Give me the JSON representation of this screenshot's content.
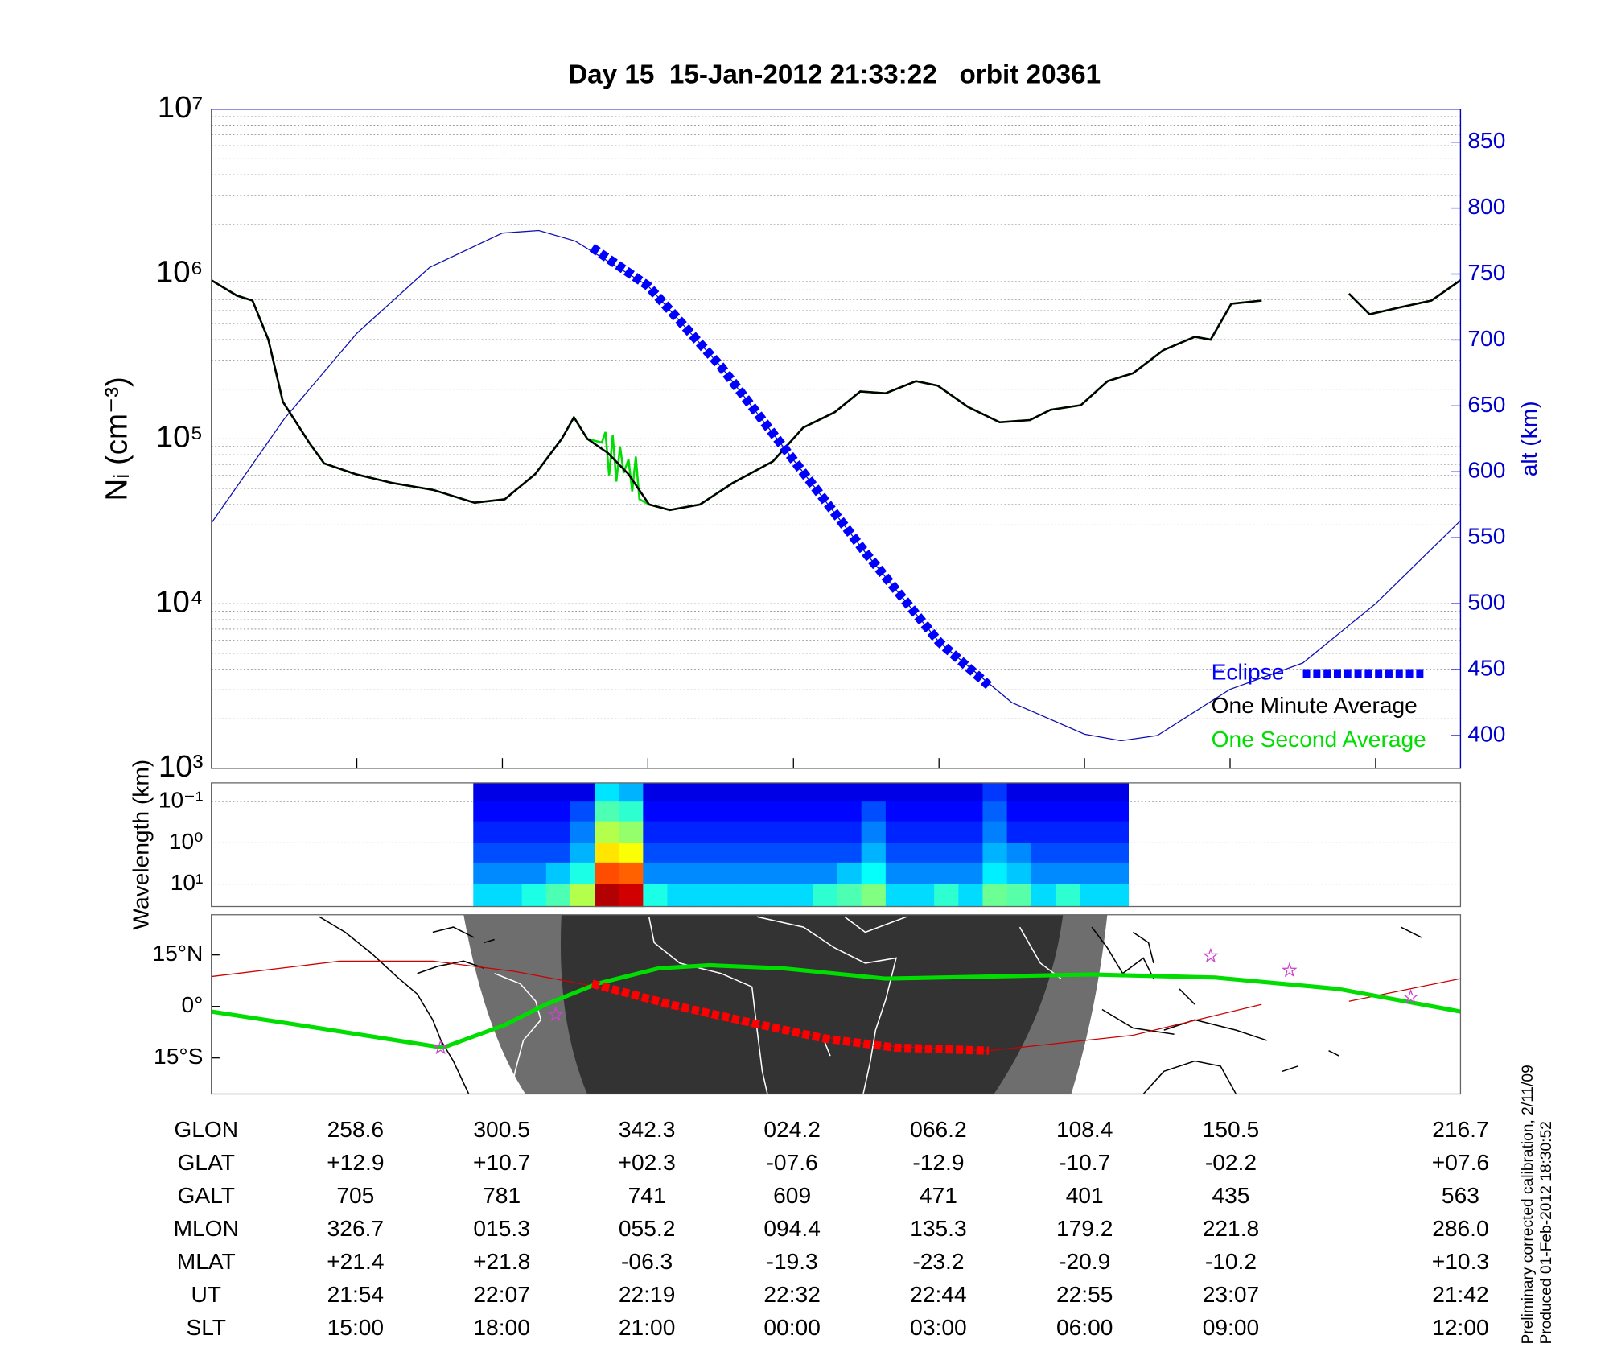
{
  "chart_data": [
    {
      "type": "line",
      "title": "Day 15  15-Jan-2012 21:33:22   orbit 20361",
      "y_label": "Nᵢ (cm⁻³)",
      "y2_label": "alt (km)",
      "yscale": "log",
      "grid": true,
      "legend": "lower right",
      "xlim": [
        0,
        103
      ],
      "xticks": [
        12,
        24,
        36,
        48,
        60,
        72,
        84,
        96
      ],
      "ylim": [
        1000,
        10000000
      ],
      "yticks": [
        {
          "value": 1000,
          "label": "10³"
        },
        {
          "value": 10000,
          "label": "10⁴"
        },
        {
          "value": 100000,
          "label": "10⁵"
        },
        {
          "value": 1000000,
          "label": "10⁶"
        },
        {
          "value": 10000000,
          "label": "10⁷"
        }
      ],
      "yminor": [
        2000,
        3000,
        4000,
        5000,
        6000,
        7000,
        8000,
        9000,
        20000,
        30000,
        40000,
        50000,
        60000,
        70000,
        80000,
        90000,
        200000,
        300000,
        400000,
        500000,
        600000,
        700000,
        800000,
        900000,
        2000000,
        3000000,
        4000000,
        5000000,
        6000000,
        7000000,
        8000000,
        9000000
      ],
      "y2lim": [
        375,
        875
      ],
      "y2ticks": [
        400,
        450,
        500,
        550,
        600,
        650,
        700,
        750,
        800,
        850
      ],
      "series": [
        {
          "name": "Eclipse",
          "color": "#0000ff",
          "axis": "y2",
          "style": "dotted",
          "x": [
            31.4,
            36,
            42,
            48,
            54,
            60,
            64.1
          ],
          "values": [
            770,
            741,
            680,
            609,
            538,
            471,
            438
          ]
        },
        {
          "name": "One Minute Average",
          "color": "#000000",
          "x": [
            0,
            2.1,
            3.4,
            4.7,
            5.9,
            8.1,
            9.3,
            11.9,
            14.9,
            18.3,
            21.7,
            24.2,
            26.7,
            28.9,
            29.9,
            31,
            32.7,
            34.4,
            36.1,
            37.8,
            40.3,
            43,
            46.3,
            48.8,
            51.4,
            53.5,
            55.6,
            58.1,
            59.9,
            62.4,
            65,
            67.5,
            69.2,
            71.7,
            73.9,
            76,
            78.5,
            81.1,
            82.4,
            84.1,
            86.6,
            90,
            93.8,
            95.5,
            98.1,
            100.6,
            103
          ],
          "values": [
            917000,
            740000,
            690000,
            400000,
            168000,
            94000,
            71000,
            61000,
            54000,
            49000,
            41000,
            43000,
            61000,
            100000,
            135000,
            100000,
            82000,
            61000,
            40000,
            37000,
            40000,
            54000,
            73000,
            117000,
            145000,
            194000,
            189000,
            224000,
            210000,
            156000,
            126000,
            130000,
            150000,
            160000,
            224000,
            250000,
            345000,
            416000,
            400000,
            660000,
            690000,
            null,
            760000,
            570000,
            630000,
            690000,
            917000
          ]
        },
        {
          "name": "One Second Average",
          "color": "#00dd00",
          "x": [
            0,
            2.1,
            3.4,
            4.7,
            5.9,
            8.1,
            9.3,
            11.9,
            14.9,
            18.3,
            21.7,
            24.2,
            26.7,
            28.9,
            29.9,
            31,
            32.2,
            32.5,
            32.8,
            33.1,
            33.4,
            33.7,
            34,
            34.4,
            34.7,
            35,
            35.3,
            36.1,
            37.8,
            40.3,
            43,
            46.3,
            48.8,
            51.4,
            53.5,
            55.6,
            58.1,
            59.9,
            62.4,
            65,
            67.5,
            69.2,
            71.7,
            73.9,
            76,
            78.5,
            81.1,
            82.4,
            84.1,
            86.6,
            90,
            93.8,
            95.5,
            98.1,
            100.6,
            103
          ],
          "values": [
            917000,
            740000,
            690000,
            400000,
            168000,
            94000,
            71000,
            61000,
            54000,
            49000,
            41000,
            43000,
            61000,
            100000,
            135000,
            100000,
            95000,
            110000,
            60000,
            105000,
            55000,
            90000,
            62000,
            75000,
            48000,
            78000,
            43000,
            40000,
            37000,
            40000,
            54000,
            73000,
            117000,
            145000,
            194000,
            189000,
            224000,
            210000,
            156000,
            126000,
            130000,
            150000,
            160000,
            224000,
            250000,
            345000,
            416000,
            400000,
            660000,
            690000,
            null,
            760000,
            570000,
            630000,
            690000,
            917000
          ]
        },
        {
          "color": "#1010b0",
          "axis": "y2",
          "x": [
            0,
            6,
            12,
            18,
            24,
            27,
            30,
            36,
            42,
            48,
            54,
            60,
            66,
            72,
            75,
            78,
            84,
            90,
            96,
            103
          ],
          "values": [
            561,
            640,
            705,
            755,
            781,
            783,
            775,
            741,
            680,
            609,
            538,
            471,
            425,
            401,
            396,
            400,
            435,
            455,
            500,
            563
          ]
        }
      ]
    },
    {
      "type": "heatmap",
      "y_label": "Wavelength (km)",
      "yscale": "log",
      "yreverse": true,
      "grid": true,
      "colormap": "jet",
      "xlim": [
        0,
        103
      ],
      "ylim": [
        0.035,
        35
      ],
      "yticks": [
        {
          "value": 0.1,
          "label": "10⁻¹"
        },
        {
          "value": 1,
          "label": "10⁰"
        },
        {
          "value": 10,
          "label": "10¹"
        }
      ],
      "x_edges": [
        21.6,
        23.6,
        25.6,
        27.6,
        29.6,
        31.6,
        33.6,
        35.6,
        37.6,
        39.6,
        41.6,
        43.6,
        45.6,
        47.6,
        49.6,
        51.6,
        53.6,
        55.6,
        57.6,
        59.6,
        61.6,
        63.6,
        65.6,
        67.6,
        69.6,
        71.6,
        73.6,
        75.6
      ],
      "y_edges": [
        0.035,
        0.1,
        0.3,
        1,
        3,
        10,
        35
      ],
      "z": [
        [
          0.1,
          0.1,
          0.1,
          0.1,
          0.1,
          0.35,
          0.3,
          0.1,
          0.1,
          0.1,
          0.1,
          0.1,
          0.1,
          0.1,
          0.1,
          0.1,
          0.1,
          0.1,
          0.1,
          0.1,
          0.1,
          0.18,
          0.1,
          0.1,
          0.1,
          0.1,
          0.1
        ],
        [
          0.13,
          0.13,
          0.13,
          0.13,
          0.2,
          0.45,
          0.42,
          0.13,
          0.13,
          0.13,
          0.13,
          0.13,
          0.13,
          0.13,
          0.13,
          0.13,
          0.2,
          0.13,
          0.13,
          0.13,
          0.13,
          0.22,
          0.13,
          0.13,
          0.13,
          0.13,
          0.13
        ],
        [
          0.16,
          0.16,
          0.16,
          0.16,
          0.25,
          0.55,
          0.52,
          0.16,
          0.16,
          0.16,
          0.16,
          0.16,
          0.16,
          0.16,
          0.16,
          0.16,
          0.25,
          0.16,
          0.16,
          0.16,
          0.16,
          0.25,
          0.16,
          0.16,
          0.16,
          0.16,
          0.16
        ],
        [
          0.2,
          0.2,
          0.2,
          0.2,
          0.3,
          0.65,
          0.62,
          0.2,
          0.2,
          0.2,
          0.2,
          0.2,
          0.2,
          0.2,
          0.2,
          0.2,
          0.3,
          0.2,
          0.2,
          0.2,
          0.2,
          0.3,
          0.26,
          0.2,
          0.2,
          0.2,
          0.2
        ],
        [
          0.26,
          0.26,
          0.26,
          0.32,
          0.4,
          0.8,
          0.78,
          0.26,
          0.26,
          0.26,
          0.26,
          0.26,
          0.26,
          0.26,
          0.26,
          0.32,
          0.38,
          0.26,
          0.26,
          0.26,
          0.26,
          0.36,
          0.32,
          0.26,
          0.26,
          0.26,
          0.26
        ],
        [
          0.34,
          0.34,
          0.4,
          0.45,
          0.55,
          0.95,
          0.92,
          0.4,
          0.34,
          0.34,
          0.34,
          0.34,
          0.34,
          0.34,
          0.42,
          0.45,
          0.5,
          0.34,
          0.34,
          0.42,
          0.34,
          0.48,
          0.46,
          0.34,
          0.42,
          0.34,
          0.34
        ]
      ]
    },
    {
      "type": "map",
      "xlim": [
        0,
        103
      ],
      "ylim": [
        -25.5,
        26.7
      ],
      "yticks": [
        {
          "value": 15,
          "label": "15°N"
        },
        {
          "value": 0,
          "label": "0°"
        },
        {
          "value": -15,
          "label": "15°S"
        }
      ],
      "series": [
        {
          "color": "#cc0000",
          "x": [
            0,
            10.6,
            18.3,
            25,
            31.4,
            42,
            54.8,
            64.1,
            76,
            86.6,
            90,
            93.8,
            103
          ],
          "values": [
            8.7,
            13.2,
            13.2,
            10.2,
            6,
            -3.9,
            -11.4,
            -12.9,
            -8.4,
            0.6,
            null,
            1.5,
            8.1
          ]
        },
        {
          "color": "#00dd00",
          "x": [
            0,
            7.2,
            19.1,
            24.2,
            27.6,
            31.8,
            36.9,
            41.1,
            47.1,
            55.6,
            64.1,
            72.6,
            82.8,
            92.9,
            103
          ],
          "values": [
            -1.5,
            -5.4,
            -12,
            -5.4,
            0.6,
            6.6,
            11.1,
            12,
            11.1,
            8.1,
            8.7,
            9.3,
            8.4,
            5.1,
            -1.5
          ]
        },
        {
          "color": "#ff0000",
          "style": "dotted",
          "x": [
            31.4,
            37.8,
            44.6,
            50.5,
            56.4,
            64.1
          ],
          "values": [
            6.6,
            0.6,
            -4.8,
            -9.3,
            -12,
            -12.9
          ]
        },
        {
          "color": "#cc44cc",
          "marker": "star",
          "x": [
            18.9,
            28.4,
            82.4,
            88.9,
            98.9
          ],
          "values": [
            -12,
            -2.4,
            14.7,
            10.5,
            2.7
          ]
        }
      ]
    }
  ],
  "table": {
    "rows": [
      {
        "label": "GLON",
        "cells": [
          "258.6",
          "300.5",
          "342.3",
          "024.2",
          "066.2",
          "108.4",
          "150.5",
          "216.7"
        ]
      },
      {
        "label": "GLAT",
        "cells": [
          "+12.9",
          "+10.7",
          "+02.3",
          "-07.6",
          "-12.9",
          "-10.7",
          "-02.2",
          "+07.6"
        ]
      },
      {
        "label": "GALT",
        "cells": [
          "705",
          "781",
          "741",
          "609",
          "471",
          "401",
          "435",
          "563"
        ]
      },
      {
        "label": "MLON",
        "cells": [
          "326.7",
          "015.3",
          "055.2",
          "094.4",
          "135.3",
          "179.2",
          "221.8",
          "286.0"
        ]
      },
      {
        "label": "MLAT",
        "cells": [
          "+21.4",
          "+21.8",
          "-06.3",
          "-19.3",
          "-23.2",
          "-20.9",
          "-10.2",
          "+10.3"
        ]
      },
      {
        "label": "UT",
        "cells": [
          "21:54",
          "22:07",
          "22:19",
          "22:32",
          "22:44",
          "22:55",
          "23:07",
          "21:42"
        ]
      },
      {
        "label": "SLT",
        "cells": [
          "15:00",
          "18:00",
          "21:00",
          "00:00",
          "03:00",
          "06:00",
          "09:00",
          "12:00"
        ]
      }
    ]
  },
  "notes": [
    "Preliminary corrected calibration, 2/11/09",
    "Produced 01-Feb-2012 18:30:52"
  ]
}
